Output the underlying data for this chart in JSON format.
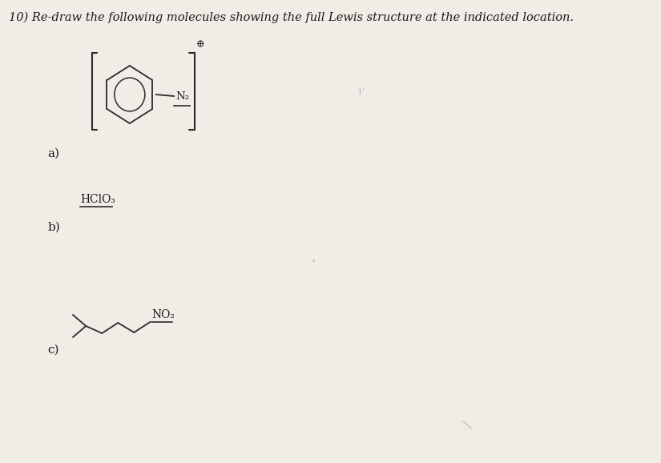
{
  "title": "10) Re-draw the following molecules showing the full Lewis structure at the indicated location.",
  "bg_color": "#f0ede6",
  "label_a": "a)",
  "label_b": "b)",
  "label_c": "c)",
  "hclo3_text": "HClO₃",
  "no2_text": "NO₂",
  "n2_text": "N₂",
  "charge_text": "⊕",
  "line_color": "#2a2a2a",
  "text_color": "#1a1a1a",
  "faint_color": "#bbbbbb"
}
